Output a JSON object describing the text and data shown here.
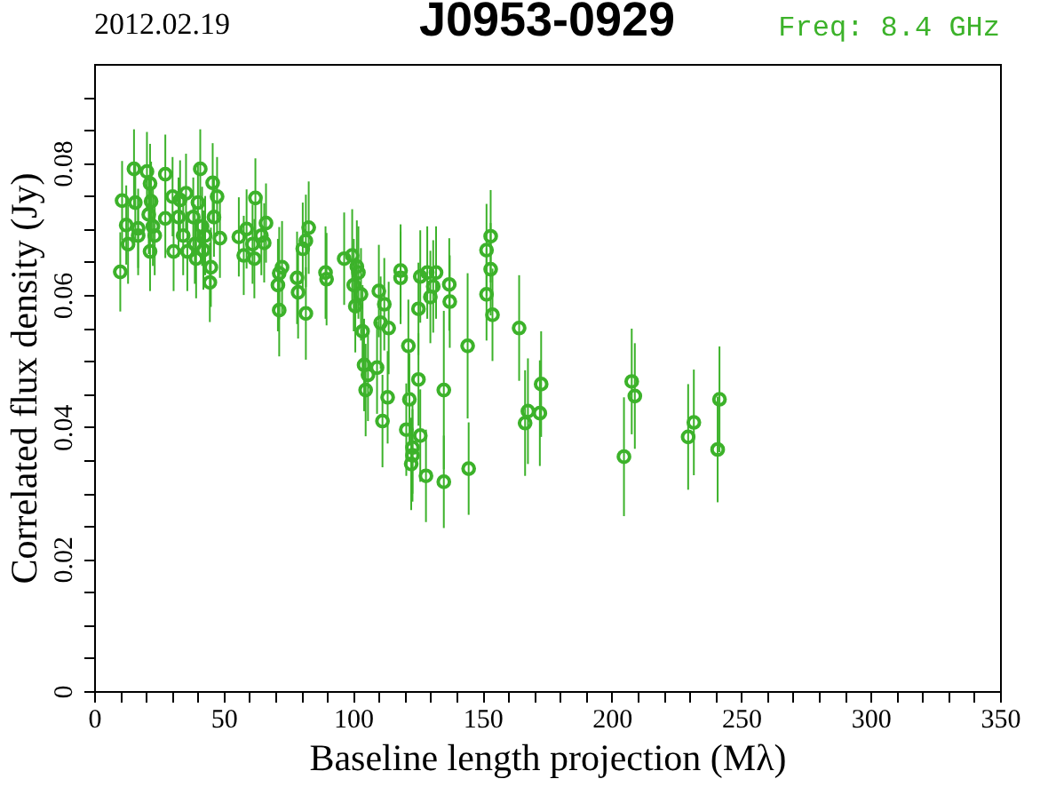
{
  "chart_data": {
    "type": "scatter",
    "title": "J0953-0929",
    "xlabel": "Baseline length projection (Mλ)",
    "ylabel": "Correlated flux density (Jy)",
    "annotations": [
      "2012.02.19",
      "Freq: 8.4 GHz"
    ],
    "x": [
      10.1,
      10.8,
      12.4,
      13.1,
      15.4,
      15.9,
      17,
      17,
      20.4,
      21.1,
      21.6,
      21.6,
      22,
      22.7,
      23.4,
      27.5,
      27.5,
      30.3,
      30.7,
      32.6,
      33.2,
      34.4,
      35.5,
      36,
      38.3,
      38.9,
      39.4,
      40.1,
      41,
      41.7,
      42.2,
      42.9,
      44.7,
      45.1,
      45.8,
      46.3,
      47.5,
      48.6,
      55.9,
      57.8,
      58.9,
      61.2,
      61.9,
      62.3,
      64.6,
      65.7,
      66.4,
      71,
      71.5,
      71.5,
      72.6,
      78.4,
      78.8,
      80.6,
      81.8,
      81.8,
      82.9,
      89.4,
      89.8,
      96.6,
      99.7,
      100.3,
      100.9,
      101.5,
      102.1,
      103.1,
      103.7,
      104.3,
      104.9,
      105.8,
      109.3,
      110,
      110.7,
      111.4,
      112.1,
      113.4,
      113.8,
      118.4,
      118.4,
      120.6,
      121.4,
      121.8,
      122.5,
      123,
      123,
      125.3,
      125.3,
      126,
      126,
      128.2,
      128.7,
      129.9,
      131,
      132.1,
      135.1,
      135.1,
      137.2,
      137.4,
      144.3,
      144.7,
      151.6,
      151.6,
      153.2,
      153.2,
      153.9,
      164.2,
      166.5,
      167.6,
      172.2,
      172.7,
      204.7,
      207.7,
      208.9,
      229.5,
      231.7,
      240.9,
      241.6
    ],
    "series": [
      {
        "color": "#3cb22a",
        "values": [
          0.0635,
          0.0743,
          0.0706,
          0.0677,
          0.0791,
          0.074,
          0.0701,
          0.069,
          0.0787,
          0.0722,
          0.0769,
          0.0666,
          0.0742,
          0.0704,
          0.069,
          0.0783,
          0.0716,
          0.0749,
          0.0666,
          0.0718,
          0.0744,
          0.069,
          0.0754,
          0.0666,
          0.0718,
          0.0677,
          0.0655,
          0.074,
          0.0791,
          0.0704,
          0.0668,
          0.069,
          0.0619,
          0.0642,
          0.077,
          0.0718,
          0.0749,
          0.0686,
          0.0688,
          0.066,
          0.07,
          0.0677,
          0.0655,
          0.0747,
          0.069,
          0.0679,
          0.0709,
          0.0615,
          0.0633,
          0.0577,
          0.0642,
          0.0626,
          0.0604,
          0.067,
          0.0682,
          0.0572,
          0.0702,
          0.0634,
          0.0624,
          0.0655,
          0.066,
          0.0615,
          0.0583,
          0.0643,
          0.0634,
          0.0601,
          0.0545,
          0.0494,
          0.0456,
          0.0479,
          0.049,
          0.0606,
          0.0558,
          0.0409,
          0.0586,
          0.0445,
          0.055,
          0.0637,
          0.0626,
          0.0396,
          0.0523,
          0.0442,
          0.0344,
          0.0369,
          0.0357,
          0.0579,
          0.0472,
          0.0628,
          0.0387,
          0.0326,
          0.0634,
          0.0597,
          0.0613,
          0.0634,
          0.0456,
          0.0317,
          0.0616,
          0.059,
          0.0523,
          0.0337,
          0.0668,
          0.0601,
          0.0689,
          0.0639,
          0.057,
          0.055,
          0.0406,
          0.0424,
          0.0421,
          0.0465,
          0.0355,
          0.0469,
          0.0447,
          0.0385,
          0.0407,
          0.0366,
          0.0442
        ],
        "errors": [
          0.006,
          0.006,
          0.006,
          0.006,
          0.006,
          0.006,
          0.006,
          0.006,
          0.006,
          0.006,
          0.006,
          0.006,
          0.006,
          0.006,
          0.006,
          0.006,
          0.006,
          0.006,
          0.006,
          0.006,
          0.006,
          0.006,
          0.006,
          0.006,
          0.006,
          0.006,
          0.006,
          0.006,
          0.006,
          0.006,
          0.006,
          0.006,
          0.006,
          0.006,
          0.006,
          0.006,
          0.006,
          0.006,
          0.006,
          0.006,
          0.006,
          0.006,
          0.006,
          0.006,
          0.006,
          0.006,
          0.006,
          0.007,
          0.007,
          0.007,
          0.007,
          0.007,
          0.007,
          0.007,
          0.007,
          0.007,
          0.007,
          0.007,
          0.007,
          0.007,
          0.007,
          0.007,
          0.007,
          0.007,
          0.007,
          0.007,
          0.007,
          0.007,
          0.007,
          0.007,
          0.007,
          0.007,
          0.007,
          0.007,
          0.007,
          0.007,
          0.007,
          0.007,
          0.007,
          0.007,
          0.007,
          0.007,
          0.007,
          0.007,
          0.007,
          0.007,
          0.007,
          0.007,
          0.007,
          0.007,
          0.007,
          0.007,
          0.007,
          0.007,
          0.012,
          0.007,
          0.007,
          0.007,
          0.011,
          0.007,
          0.007,
          0.007,
          0.007,
          0.007,
          0.007,
          0.008,
          0.008,
          0.008,
          0.008,
          0.008,
          0.009,
          0.008,
          0.008,
          0.008,
          0.008,
          0.008,
          0.008
        ]
      }
    ],
    "marker": "circle",
    "xlim": [
      0,
      350
    ],
    "ylim": [
      0,
      0.095
    ],
    "xticks": [
      0,
      {
        "value": 10,
        "label": null
      },
      {
        "value": 20,
        "label": null
      },
      {
        "value": 30,
        "label": null
      },
      {
        "value": 40,
        "label": null
      },
      50,
      {
        "value": 60,
        "label": null
      },
      {
        "value": 70,
        "label": null
      },
      {
        "value": 80,
        "label": null
      },
      {
        "value": 90,
        "label": null
      },
      100,
      {
        "value": 110,
        "label": null
      },
      {
        "value": 120,
        "label": null
      },
      {
        "value": 130,
        "label": null
      },
      {
        "value": 140,
        "label": null
      },
      150,
      {
        "value": 160,
        "label": null
      },
      {
        "value": 170,
        "label": null
      },
      {
        "value": 180,
        "label": null
      },
      {
        "value": 190,
        "label": null
      },
      200,
      {
        "value": 210,
        "label": null
      },
      {
        "value": 220,
        "label": null
      },
      {
        "value": 230,
        "label": null
      },
      {
        "value": 240,
        "label": null
      },
      250,
      {
        "value": 260,
        "label": null
      },
      {
        "value": 270,
        "label": null
      },
      {
        "value": 280,
        "label": null
      },
      {
        "value": 290,
        "label": null
      },
      300,
      {
        "value": 310,
        "label": null
      },
      {
        "value": 320,
        "label": null
      },
      {
        "value": 330,
        "label": null
      },
      {
        "value": 340,
        "label": null
      },
      350
    ],
    "yticks": [
      0,
      {
        "value": 0.005,
        "label": null
      },
      {
        "value": 0.01,
        "label": null
      },
      {
        "value": 0.015,
        "label": null
      },
      0.02,
      {
        "value": 0.025,
        "label": null
      },
      {
        "value": 0.03,
        "label": null
      },
      {
        "value": 0.035,
        "label": null
      },
      0.04,
      {
        "value": 0.045,
        "label": null
      },
      {
        "value": 0.05,
        "label": null
      },
      {
        "value": 0.055,
        "label": null
      },
      0.06,
      {
        "value": 0.065,
        "label": null
      },
      {
        "value": 0.07,
        "label": null
      },
      {
        "value": 0.075,
        "label": null
      },
      0.08,
      {
        "value": 0.085,
        "label": null
      },
      {
        "value": 0.09,
        "label": null
      }
    ],
    "grid": false
  }
}
